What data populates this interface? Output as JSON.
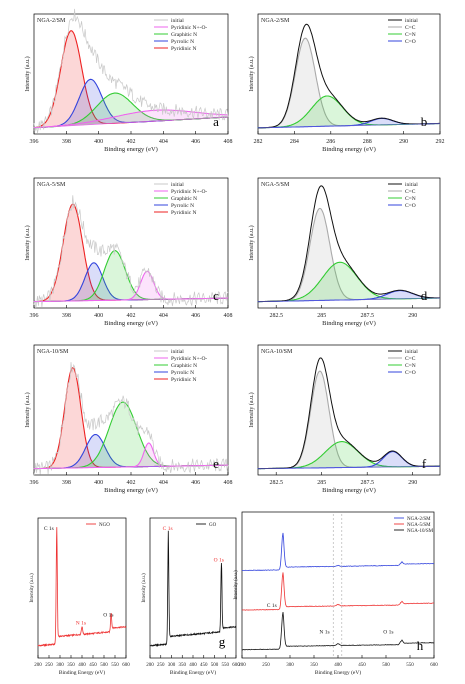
{
  "chart_data": [
    {
      "id": "a",
      "type": "line",
      "sample": "NGA-2/SM",
      "xlabel": "Binding energy (eV)",
      "ylabel": "Intensity (a.u.)",
      "xlim": [
        396,
        408
      ],
      "xticks": [
        396,
        398,
        400,
        402,
        404,
        406,
        408
      ],
      "xreverse": false,
      "legend": [
        {
          "name": "initial",
          "color": "#c8c8c8"
        },
        {
          "name": "Pyridinic N+-O-",
          "color": "#ee66ee"
        },
        {
          "name": "Graphitic N",
          "color": "#33cc33"
        },
        {
          "name": "Pyrrolic N",
          "color": "#3344dd"
        },
        {
          "name": "Pyridinic N",
          "color": "#ee2222"
        }
      ],
      "peaks": [
        {
          "name": "Pyridinic N",
          "center": 398.3,
          "height": 0.88,
          "width": 0.65,
          "color": "#ee2222"
        },
        {
          "name": "Pyrrolic N",
          "center": 399.5,
          "height": 0.42,
          "width": 0.7,
          "color": "#3344dd"
        },
        {
          "name": "Graphitic N",
          "center": 401.0,
          "height": 0.28,
          "width": 1.1,
          "color": "#33cc33"
        },
        {
          "name": "Pyridinic N+-O-",
          "center": 403.5,
          "height": 0.1,
          "width": 2.5,
          "color": "#ee66ee"
        }
      ],
      "baseline": [
        0.02,
        0.12
      ]
    },
    {
      "id": "b",
      "type": "line",
      "sample": "NGA-2/SM",
      "xlabel": "Binding energy (eV)",
      "ylabel": "Intensity (a.u.)",
      "xlim": [
        282,
        292
      ],
      "xticks": [
        282,
        284,
        286,
        288,
        290,
        292
      ],
      "xreverse": false,
      "legend": [
        {
          "name": "initial",
          "color": "#111111"
        },
        {
          "name": "C=C",
          "color": "#aaaaaa"
        },
        {
          "name": "C=N",
          "color": "#33cc33"
        },
        {
          "name": "C=O",
          "color": "#3344dd"
        }
      ],
      "peaks": [
        {
          "name": "C=C",
          "center": 284.6,
          "height": 0.82,
          "width": 0.55,
          "color": "#aaaaaa"
        },
        {
          "name": "C=N",
          "center": 285.8,
          "height": 0.28,
          "width": 0.85,
          "color": "#33cc33"
        },
        {
          "name": "C=O",
          "center": 288.8,
          "height": 0.06,
          "width": 0.6,
          "color": "#3344dd"
        }
      ],
      "baseline": [
        0.02,
        0.06
      ]
    },
    {
      "id": "c",
      "type": "line",
      "sample": "NGA-5/SM",
      "xlabel": "Binding energy (eV)",
      "ylabel": "Intensity (a.u.)",
      "xlim": [
        396,
        408
      ],
      "xticks": [
        396,
        398,
        400,
        402,
        404,
        406,
        408
      ],
      "xreverse": false,
      "legend": [
        {
          "name": "initial",
          "color": "#c8c8c8"
        },
        {
          "name": "Pyridinic N+-O-",
          "color": "#ee66ee"
        },
        {
          "name": "Graphitic N",
          "color": "#33cc33"
        },
        {
          "name": "Pyrrolic N",
          "color": "#3344dd"
        },
        {
          "name": "Pyridinic N",
          "color": "#ee2222"
        }
      ],
      "peaks": [
        {
          "name": "Pyridinic N",
          "center": 398.4,
          "height": 0.82,
          "width": 0.6,
          "color": "#ee2222"
        },
        {
          "name": "Pyrrolic N",
          "center": 399.7,
          "height": 0.32,
          "width": 0.55,
          "color": "#3344dd"
        },
        {
          "name": "Graphitic N",
          "center": 401.0,
          "height": 0.42,
          "width": 0.65,
          "color": "#33cc33"
        },
        {
          "name": "Pyridinic N+-O-",
          "center": 403.0,
          "height": 0.24,
          "width": 0.4,
          "color": "#ee66ee"
        }
      ],
      "baseline": [
        0.02,
        0.05
      ]
    },
    {
      "id": "d",
      "type": "line",
      "sample": "NGA-5/SM",
      "xlabel": "Binding energy (eV)",
      "ylabel": "Intensity (a.u.)",
      "xlim": [
        281.5,
        291.5
      ],
      "xticks": [
        282.5,
        285.0,
        287.5,
        290.0
      ],
      "xreverse": false,
      "legend": [
        {
          "name": "initial",
          "color": "#111111"
        },
        {
          "name": "C=C",
          "color": "#aaaaaa"
        },
        {
          "name": "C=N",
          "color": "#33cc33"
        },
        {
          "name": "C=O",
          "color": "#3344dd"
        }
      ],
      "peaks": [
        {
          "name": "C=C",
          "center": 284.9,
          "height": 0.78,
          "width": 0.55,
          "color": "#aaaaaa"
        },
        {
          "name": "C=N",
          "center": 286.0,
          "height": 0.32,
          "width": 0.95,
          "color": "#33cc33"
        },
        {
          "name": "C=O",
          "center": 289.3,
          "height": 0.07,
          "width": 0.7,
          "color": "#3344dd"
        }
      ],
      "baseline": [
        0.02,
        0.05
      ]
    },
    {
      "id": "e",
      "type": "line",
      "sample": "NGA-10/SM",
      "xlabel": "Binding energy (eV)",
      "ylabel": "Intensity (a.u.)",
      "xlim": [
        396,
        408
      ],
      "xticks": [
        396,
        398,
        400,
        402,
        404,
        406,
        408
      ],
      "xreverse": false,
      "legend": [
        {
          "name": "initial",
          "color": "#c8c8c8"
        },
        {
          "name": "Pyridinic N+-O-",
          "color": "#ee66ee"
        },
        {
          "name": "Graphitic N",
          "color": "#33cc33"
        },
        {
          "name": "Pyrrolic N",
          "color": "#3344dd"
        },
        {
          "name": "Pyridinic N",
          "color": "#ee2222"
        }
      ],
      "peaks": [
        {
          "name": "Pyridinic N",
          "center": 398.4,
          "height": 0.85,
          "width": 0.5,
          "color": "#ee2222"
        },
        {
          "name": "Pyrrolic N",
          "center": 399.8,
          "height": 0.28,
          "width": 0.6,
          "color": "#3344dd"
        },
        {
          "name": "Graphitic N",
          "center": 401.5,
          "height": 0.55,
          "width": 0.85,
          "color": "#33cc33"
        },
        {
          "name": "Pyridinic N+-O-",
          "center": 403.1,
          "height": 0.2,
          "width": 0.3,
          "color": "#ee66ee"
        }
      ],
      "baseline": [
        0.02,
        0.05
      ]
    },
    {
      "id": "f",
      "type": "line",
      "sample": "NGA-10/SM",
      "xlabel": "Binding energy (eV)",
      "ylabel": "Intensity (a.u.)",
      "xlim": [
        281.5,
        291.5
      ],
      "xticks": [
        282.5,
        285.0,
        287.5,
        290.0
      ],
      "xreverse": false,
      "legend": [
        {
          "name": "initial",
          "color": "#111111"
        },
        {
          "name": "C=C",
          "color": "#aaaaaa"
        },
        {
          "name": "C=N",
          "color": "#33cc33"
        },
        {
          "name": "C=O",
          "color": "#3344dd"
        }
      ],
      "peaks": [
        {
          "name": "C=C",
          "center": 284.9,
          "height": 0.82,
          "width": 0.5,
          "color": "#aaaaaa"
        },
        {
          "name": "C=N",
          "center": 286.1,
          "height": 0.22,
          "width": 0.9,
          "color": "#33cc33"
        },
        {
          "name": "C=O",
          "center": 288.9,
          "height": 0.13,
          "width": 0.5,
          "color": "#3344dd"
        }
      ],
      "baseline": [
        0.02,
        0.04
      ]
    },
    {
      "id": "NGO",
      "type": "line",
      "sample": "",
      "xlabel": "Binding Energy (eV)",
      "ylabel": "Intensity (a.u.)",
      "xlim": [
        200,
        600
      ],
      "xticks": [
        200,
        250,
        300,
        350,
        400,
        450,
        500,
        550,
        600
      ],
      "xreverse": false,
      "legend": [
        {
          "name": "NGO",
          "color": "#ee3333"
        }
      ],
      "survey": [
        {
          "label": "C 1s",
          "center": 285,
          "height": 0.88
        },
        {
          "label": "N 1s",
          "center": 400,
          "height": 0.06
        },
        {
          "label": "O 1s",
          "center": 532,
          "height": 0.14
        }
      ],
      "annotations": [
        "C 1s",
        "N 1s",
        "O 1s"
      ]
    },
    {
      "id": "g",
      "type": "line",
      "sample": "",
      "xlabel": "Binding Energy (eV)",
      "ylabel": "Intensity (a.u.)",
      "xlim": [
        200,
        600
      ],
      "xticks": [
        200,
        250,
        300,
        350,
        400,
        450,
        500,
        550,
        600
      ],
      "xreverse": false,
      "legend": [
        {
          "name": "GO",
          "color": "#111111"
        }
      ],
      "survey": [
        {
          "label": "C 1s",
          "center": 285,
          "height": 0.85
        },
        {
          "label": "O 1s",
          "center": 532,
          "height": 0.55
        }
      ],
      "annotations": [
        "C 1s",
        "O 1s"
      ]
    },
    {
      "id": "h",
      "type": "line",
      "sample": "",
      "xlabel": "Binding Energy (eV)",
      "ylabel": "Intensity (a.u.)",
      "xlim": [
        200,
        600
      ],
      "xticks": [
        200,
        250,
        300,
        350,
        400,
        450,
        500,
        550,
        600
      ],
      "xreverse": false,
      "legend": [
        {
          "name": "NGA-2/SM",
          "color": "#3344dd"
        },
        {
          "name": "NGA-5/SM",
          "color": "#ee3333"
        },
        {
          "name": "NGA-10/SM",
          "color": "#111111"
        }
      ],
      "survey_stack": [
        {
          "name": "NGA-2/SM",
          "C": 0.75,
          "N": 0.02,
          "O": 0.06
        },
        {
          "name": "NGA-5/SM",
          "C": 0.75,
          "N": 0.03,
          "O": 0.06
        },
        {
          "name": "NGA-10/SM",
          "C": 0.75,
          "N": 0.04,
          "O": 0.08
        }
      ],
      "annotations": [
        "C 1s",
        "N 1s",
        "O 1s"
      ]
    }
  ],
  "panel_letters": [
    "a",
    "b",
    "c",
    "d",
    "e",
    "f",
    "g",
    "h"
  ]
}
